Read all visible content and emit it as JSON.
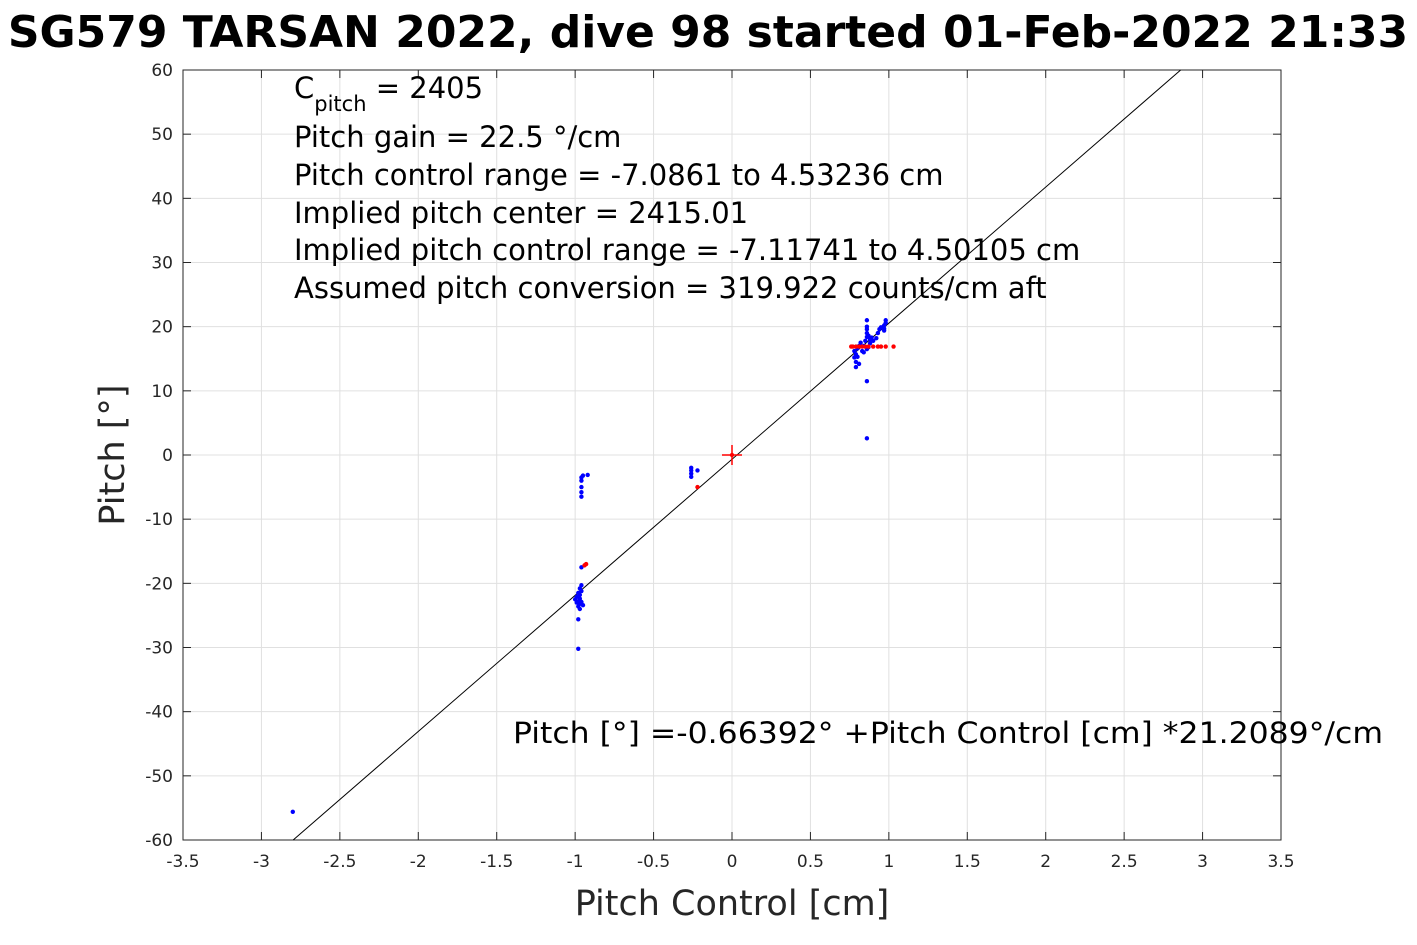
{
  "chart_data": {
    "type": "scatter",
    "title": "SG579 TARSAN 2022, dive 98 started 01-Feb-2022 21:33",
    "xlabel": "Pitch Control [cm]",
    "ylabel": "Pitch [°]",
    "xlim": [
      -3.5,
      3.5
    ],
    "ylim": [
      -60,
      60
    ],
    "xticks": [
      -3.5,
      -3,
      -2.5,
      -2,
      -1.5,
      -1,
      -0.5,
      0,
      0.5,
      1,
      1.5,
      2,
      2.5,
      3,
      3.5
    ],
    "xtick_labels": [
      "-3.5",
      "-3",
      "-2.5",
      "-2",
      "-1.5",
      "-1",
      "-0.5",
      "0",
      "0.5",
      "1",
      "1.5",
      "2",
      "2.5",
      "3",
      "3.5"
    ],
    "yticks": [
      -60,
      -50,
      -40,
      -30,
      -20,
      -10,
      0,
      10,
      20,
      30,
      40,
      50,
      60
    ],
    "ytick_labels": [
      "-60",
      "-50",
      "-40",
      "-30",
      "-20",
      "-10",
      "0",
      "10",
      "20",
      "30",
      "40",
      "50",
      "60"
    ],
    "grid": true,
    "colors": {
      "good_points": "#0000ff",
      "flagged_points": "#ff0000",
      "fit_line": "#000000",
      "center_marker": "#ff0000",
      "grid": "#e0e0e0"
    },
    "fit_line": {
      "intercept": -0.66392,
      "slope": 21.2089
    },
    "center_marker": {
      "x": 0,
      "y": 0
    },
    "annotations": {
      "cpitch_main": "C",
      "cpitch_sub": "pitch",
      "cpitch_value": " = 2405",
      "pitch_gain": "Pitch gain = 22.5 °/cm",
      "control_range": "Pitch control range = -7.0861 to 4.53236 cm",
      "implied_center": "Implied pitch center = 2415.01",
      "implied_range": "Implied pitch control range = -7.11741 to 4.50105 cm",
      "conversion": "Assumed pitch conversion = 319.922 counts/cm aft",
      "fit_equation": "Pitch [°] =-0.66392° +Pitch Control [cm] *21.2089°/cm"
    },
    "series": [
      {
        "color": "#0000ff",
        "points": [
          [
            -2.8,
            -55.6
          ],
          [
            -0.98,
            -30.2
          ],
          [
            -0.98,
            -25.6
          ],
          [
            -0.97,
            -24.0
          ],
          [
            -0.98,
            -23.6
          ],
          [
            -0.97,
            -23.2
          ],
          [
            -0.98,
            -22.8
          ],
          [
            -0.97,
            -22.4
          ],
          [
            -0.99,
            -22.1
          ],
          [
            -0.97,
            -21.8
          ],
          [
            -0.98,
            -21.5
          ],
          [
            -0.96,
            -21.2
          ],
          [
            -0.97,
            -20.8
          ],
          [
            -0.96,
            -20.3
          ],
          [
            -0.99,
            -23.0
          ],
          [
            -1.0,
            -22.5
          ],
          [
            -0.96,
            -22.9
          ],
          [
            -0.95,
            -23.4
          ],
          [
            -0.96,
            -17.5
          ],
          [
            -0.96,
            -6.5
          ],
          [
            -0.96,
            -5.8
          ],
          [
            -0.96,
            -5.0
          ],
          [
            -0.96,
            -4.0
          ],
          [
            -0.96,
            -3.5
          ],
          [
            -0.95,
            -3.2
          ],
          [
            -0.92,
            -3.1
          ],
          [
            -0.26,
            -3.4
          ],
          [
            -0.26,
            -2.9
          ],
          [
            -0.26,
            -2.4
          ],
          [
            -0.26,
            -2.0
          ],
          [
            -0.22,
            -2.4
          ],
          [
            0.86,
            2.6
          ],
          [
            0.86,
            11.5
          ],
          [
            0.79,
            13.7
          ],
          [
            0.79,
            14.5
          ],
          [
            0.78,
            15.2
          ],
          [
            0.79,
            15.7
          ],
          [
            0.78,
            16.2
          ],
          [
            0.8,
            16.6
          ],
          [
            0.81,
            17.0
          ],
          [
            0.82,
            17.5
          ],
          [
            0.83,
            16.2
          ],
          [
            0.84,
            17.0
          ],
          [
            0.85,
            17.8
          ],
          [
            0.86,
            18.4
          ],
          [
            0.86,
            19.0
          ],
          [
            0.86,
            19.6
          ],
          [
            0.86,
            20.0
          ],
          [
            0.86,
            21.0
          ],
          [
            0.87,
            18.6
          ],
          [
            0.88,
            18.0
          ],
          [
            0.88,
            17.4
          ],
          [
            0.87,
            16.8
          ],
          [
            0.89,
            18.3
          ],
          [
            0.9,
            17.8
          ],
          [
            0.92,
            18.2
          ],
          [
            0.93,
            19.0
          ],
          [
            0.94,
            19.6
          ],
          [
            0.95,
            19.9
          ],
          [
            0.97,
            20.2
          ],
          [
            0.98,
            20.6
          ],
          [
            0.98,
            21.0
          ],
          [
            0.97,
            19.7
          ],
          [
            0.97,
            19.4
          ],
          [
            0.86,
            16.5
          ],
          [
            0.84,
            16.0
          ],
          [
            0.8,
            15.3
          ],
          [
            0.81,
            14.2
          ]
        ]
      },
      {
        "color": "#ff0000",
        "points": [
          [
            -0.93,
            -17.0
          ],
          [
            -0.94,
            -17.2
          ],
          [
            -0.22,
            -5.0
          ],
          [
            0.0,
            0.0
          ],
          [
            0.76,
            16.9
          ],
          [
            0.77,
            16.9
          ],
          [
            0.79,
            16.9
          ],
          [
            0.81,
            16.9
          ],
          [
            0.83,
            16.9
          ],
          [
            0.85,
            16.9
          ],
          [
            0.87,
            16.9
          ],
          [
            0.9,
            16.9
          ],
          [
            0.93,
            16.9
          ],
          [
            0.95,
            16.9
          ],
          [
            0.98,
            16.9
          ],
          [
            1.03,
            16.9
          ]
        ]
      }
    ]
  }
}
